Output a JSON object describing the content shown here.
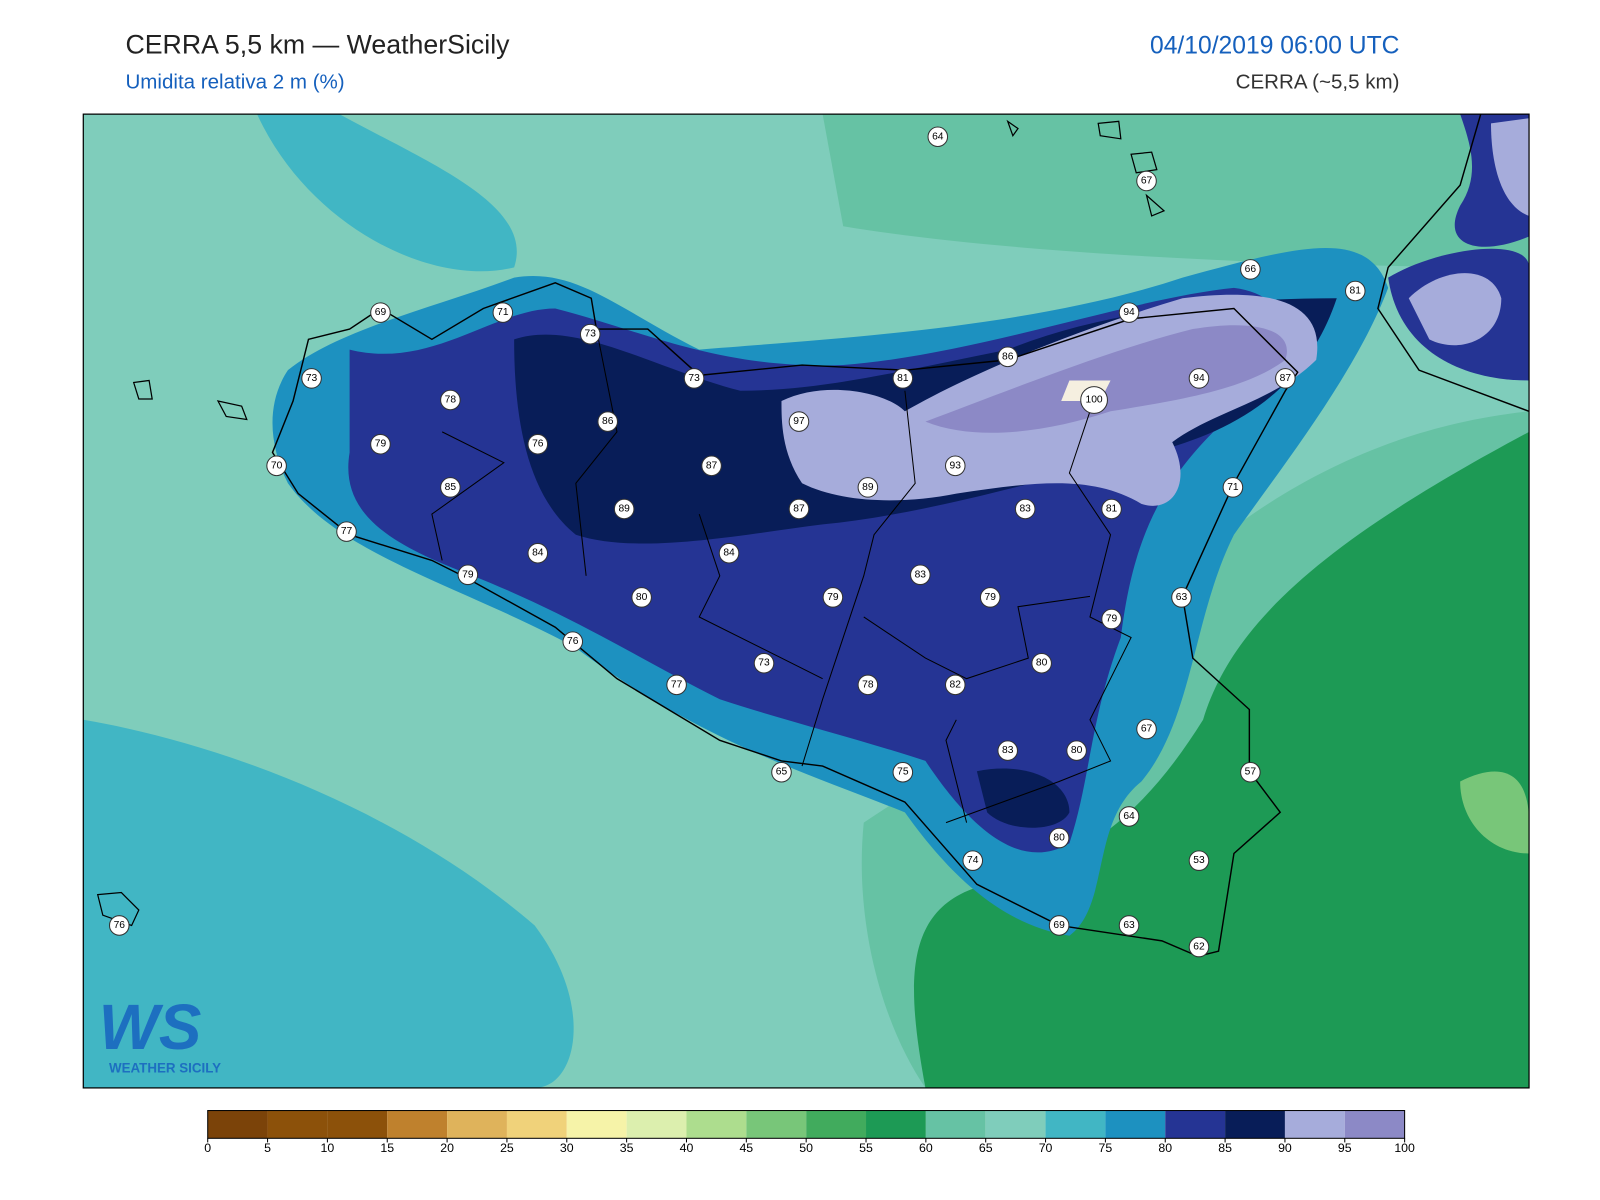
{
  "header": {
    "title": "CERRA 5,5 km — WeatherSicily",
    "subtitle": "Umidita relativa 2 m (%)",
    "datetime": "04/10/2019 06:00 UTC",
    "model": "CERRA (~5,5 km)"
  },
  "map": {
    "stations": [
      64,
      67,
      66,
      81,
      69,
      71,
      73,
      94,
      86,
      73,
      73,
      81,
      94,
      87,
      100,
      78,
      86,
      97,
      79,
      76,
      70,
      87,
      93,
      89,
      85,
      71,
      89,
      87,
      83,
      81,
      77,
      84,
      84,
      79,
      83,
      80,
      79,
      79,
      63,
      79,
      76,
      73,
      80,
      77,
      78,
      82,
      67,
      83,
      80,
      65,
      75,
      57,
      64,
      80,
      74,
      53,
      69,
      63,
      62,
      76
    ]
  },
  "colorbar": {
    "ticks": [
      0,
      5,
      10,
      15,
      20,
      25,
      30,
      35,
      40,
      45,
      50,
      55,
      60,
      65,
      70,
      75,
      80,
      85,
      90,
      95,
      100
    ],
    "colors": [
      "#7b4309",
      "#8c510a",
      "#8c510a",
      "#bf812d",
      "#dfb35b",
      "#f0d27a",
      "#f6f3a8",
      "#dcefae",
      "#addd8e",
      "#78c679",
      "#41ab5d",
      "#1d9a55",
      "#66c2a4",
      "#7fcdbb",
      "#41b6c4",
      "#1d91c0",
      "#253494",
      "#081d58",
      "#a6acdb",
      "#8c89c6"
    ]
  },
  "logo": {
    "mark": "WS",
    "name": "WEATHER SICILY"
  }
}
